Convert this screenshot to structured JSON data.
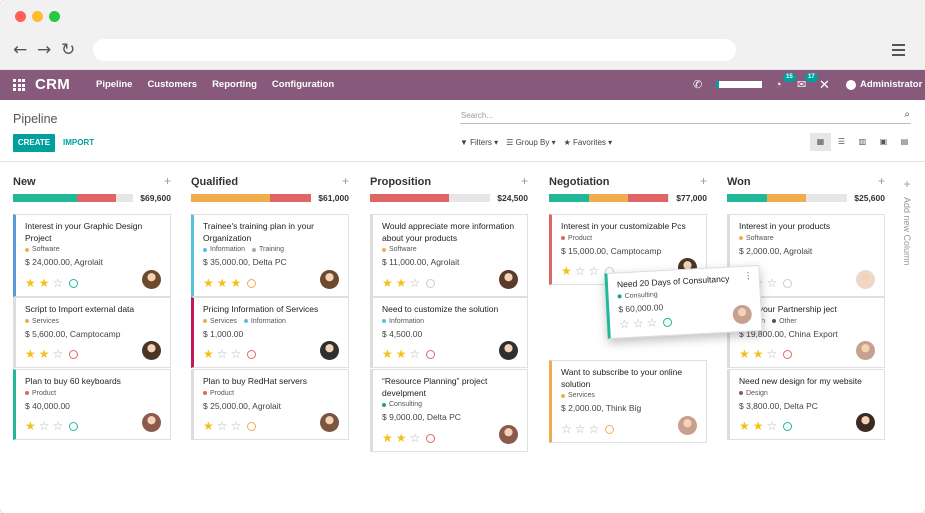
{
  "app": {
    "brand": "CRM",
    "menu": [
      "Pipeline",
      "Customers",
      "Reporting",
      "Configuration"
    ],
    "user": "Administrator",
    "activity_count": "15",
    "chat_count": "17"
  },
  "control": {
    "title": "Pipeline",
    "create": "CREATE",
    "import": "IMPORT",
    "search_placeholder": "Search...",
    "filters": "Filters",
    "group_by": "Group By",
    "favorites": "Favorites"
  },
  "add_column": "Add new Column",
  "colors": {
    "brand": "#875a7b",
    "accent": "#00a09d",
    "green": "#21b799",
    "orange": "#f0ad4e",
    "red": "#e06666",
    "grey": "#e6e6e6"
  },
  "columns": [
    {
      "name": "New",
      "total": "$69,600",
      "bar": [
        [
          "#21b799",
          0.53
        ],
        [
          "#e06666",
          0.33
        ]
      ],
      "cards": [
        {
          "title": "Interest in your Graphic Design Project",
          "tag": "Software",
          "tag_color": "#f0ad4e",
          "revenue": "$ 24,000.00, Agrolait",
          "stars": 2,
          "status": "green",
          "border": "#5b9bd5",
          "avatar": "#6b4a2e"
        },
        {
          "title": "Script to Import external data",
          "tag": "Services",
          "tag_color": "#f0ad4e",
          "revenue": "$ 5,600.00, Camptocamp",
          "stars": 2,
          "status": "red",
          "border": "#dddddd",
          "avatar": "#4a3424"
        },
        {
          "title": "Plan to buy 60 keyboards",
          "tag": "Product",
          "tag_color": "#e06666",
          "revenue": "$ 40,000.00",
          "stars": 1,
          "status": "green",
          "border": "#21b799",
          "avatar": "#8b5a4a"
        }
      ]
    },
    {
      "name": "Qualified",
      "total": "$61,000",
      "bar": [
        [
          "#f0ad4e",
          0.66
        ],
        [
          "#e06666",
          0.34
        ]
      ],
      "cards": [
        {
          "title": "Trainee's training plan in your Organization",
          "tag": "Information",
          "tag2": "Training",
          "tag_color": "#5bc0de",
          "tag2_color": "#aaaaaa",
          "revenue": "$ 35,000.00, Delta PC",
          "stars": 3,
          "status": "orange",
          "border": "#5bc0de",
          "avatar": "#6b4a2e"
        },
        {
          "title": "Pricing Information of Services",
          "tag": "Services",
          "tag2": "Information",
          "tag_color": "#f0ad4e",
          "tag2_color": "#5bc0de",
          "revenue": "$ 1,000.00",
          "stars": 1,
          "status": "red",
          "border": "#c2185b",
          "avatar": "#2f2f2f"
        },
        {
          "title": "Plan to buy RedHat servers",
          "tag": "Product",
          "tag_color": "#e06666",
          "revenue": "$ 25,000.00, Agrolait",
          "stars": 1,
          "status": "orange",
          "border": "#dddddd",
          "avatar": "#7a5540"
        }
      ]
    },
    {
      "name": "Proposition",
      "total": "$24,500",
      "bar": [
        [
          "#e06666",
          0.66
        ]
      ],
      "cards": [
        {
          "title": "Would appreciate more information about your products",
          "tag": "Software",
          "tag_color": "#f0ad4e",
          "revenue": "$ 11,000.00, Agrolait",
          "stars": 2,
          "status": "grey",
          "border": "#dddddd",
          "avatar": "#5a3a2a"
        },
        {
          "title": "Need to customize the solution",
          "tag": "Information",
          "tag_color": "#5bc0de",
          "revenue": "$ 4,500.00",
          "stars": 2,
          "status": "red",
          "border": "#dddddd",
          "avatar": "#2f2f2f"
        },
        {
          "title": "“Resource Planning” project develpment",
          "tag": "Consulting",
          "tag_color": "#21a08a",
          "revenue": "$ 9,000.00, Delta PC",
          "stars": 2,
          "status": "red",
          "border": "#dddddd",
          "avatar": "#8b5a4a"
        }
      ]
    },
    {
      "name": "Negotiation",
      "total": "$77,000",
      "bar": [
        [
          "#21b799",
          0.33
        ],
        [
          "#f0ad4e",
          0.33
        ],
        [
          "#e06666",
          0.33
        ]
      ],
      "cards": [
        {
          "title": "Interest in your customizable Pcs",
          "tag": "Product",
          "tag_color": "#e06666",
          "revenue": "$ 15,000.00, Camptocamp",
          "stars": 1,
          "status": "grey",
          "border": "#e06666",
          "avatar": "#4a3424"
        },
        {
          "title": "Want to subscribe to your online solution",
          "tag": "Services",
          "tag_color": "#f0ad4e",
          "revenue": "$ 2,000.00, Think Big",
          "stars": 0,
          "status": "orange",
          "border": "#f0ad4e",
          "avatar": "#c8a090"
        }
      ]
    },
    {
      "name": "Won",
      "total": "$25,600",
      "bar": [
        [
          "#21b799",
          0.33
        ],
        [
          "#f0ad4e",
          0.33
        ]
      ],
      "cards": [
        {
          "title": "Interest in your products",
          "tag": "Software",
          "tag_color": "#f0ad4e",
          "revenue": "$ 2,000.00, Agrolait",
          "stars": 0,
          "status": "grey",
          "border": "#dddddd",
          "avatar": "#f0d8c8"
        },
        {
          "title": "ist in your Partnership ject",
          "tag": "nation",
          "tag2": "Other",
          "tag_color": "#5bc0de",
          "tag2_color": "#555555",
          "revenue": "$ 19,800.00, China Export",
          "stars": 2,
          "status": "red",
          "border": "#dddddd",
          "avatar": "#c8a090"
        },
        {
          "title": "Need new design for my website",
          "tag": "Design",
          "tag_color": "#875a7b",
          "revenue": "$ 3,800.00, Delta PC",
          "stars": 2,
          "status": "green",
          "border": "#dddddd",
          "avatar": "#3a2a22"
        }
      ]
    }
  ],
  "dragging": {
    "title": "Need 20 Days of Consultancy",
    "tag": "Consulting",
    "tag_color": "#21a08a",
    "revenue": "$ 60,000.00",
    "stars": 0,
    "status": "green",
    "avatar": "#c8a090"
  }
}
